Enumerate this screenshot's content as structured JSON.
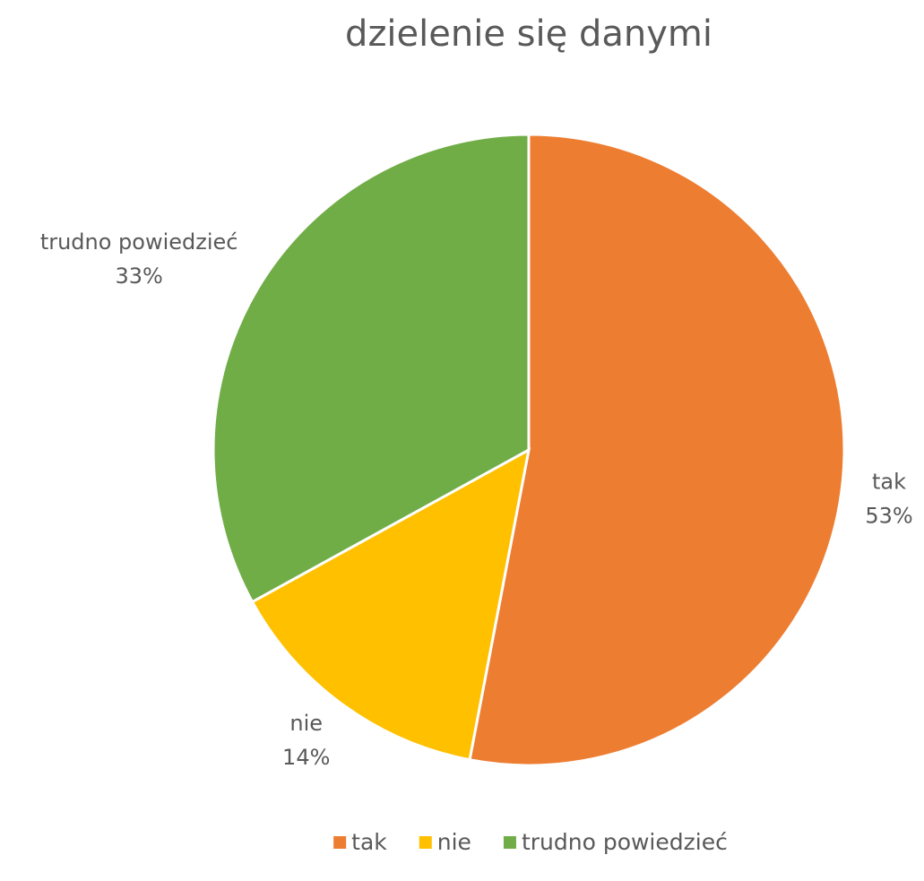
{
  "chart_data": {
    "type": "pie",
    "title": "dzielenie się danymi",
    "categories": [
      "tak",
      "nie",
      "trudno powiedzieć"
    ],
    "values": [
      53,
      14,
      33
    ],
    "value_labels": [
      "53%",
      "14%",
      "33%"
    ],
    "colors": [
      "#ED7D31",
      "#FFC000",
      "#70AD47"
    ],
    "legend": "bottom"
  }
}
